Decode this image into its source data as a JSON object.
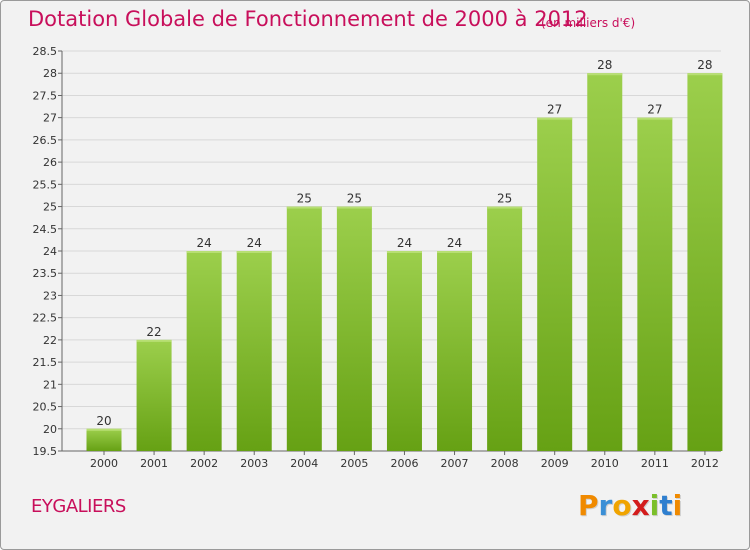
{
  "header": {
    "title": "Dotation Globale de Fonctionnement de 2000 à 2012",
    "unit": "(en milliers d'€)"
  },
  "commune": "EYGALIERS",
  "logo": {
    "letters": [
      "P",
      "r",
      "o",
      "x",
      "i",
      "t",
      "i"
    ],
    "colors": [
      "#f08a00",
      "#3a8fd6",
      "#f0a400",
      "#d31c1c",
      "#7bbf2a",
      "#2f7fcf",
      "#f08a00"
    ]
  },
  "colors": {
    "title": "#c80f5b",
    "bar_top": "#9ccf4c",
    "bar_bottom": "#66a114",
    "grid": "#d8d8d8"
  },
  "chart_data": {
    "type": "bar",
    "categories": [
      "2000",
      "2001",
      "2002",
      "2003",
      "2004",
      "2005",
      "2006",
      "2007",
      "2008",
      "2009",
      "2010",
      "2011",
      "2012"
    ],
    "values": [
      20,
      22,
      24,
      24,
      25,
      25,
      24,
      24,
      25,
      27,
      28,
      27,
      28
    ],
    "data_labels": [
      "20",
      "22",
      "24",
      "24",
      "25",
      "25",
      "24",
      "24",
      "25",
      "27",
      "28",
      "27",
      "28"
    ],
    "ylim": [
      19.5,
      28.5
    ],
    "yticks": [
      19.5,
      20,
      20.5,
      21,
      21.5,
      22,
      22.5,
      23,
      23.5,
      24,
      24.5,
      25,
      25.5,
      26,
      26.5,
      27,
      27.5,
      28,
      28.5
    ],
    "ytick_labels": [
      "19.5",
      "20",
      "20.5",
      "21",
      "21.5",
      "22",
      "22.5",
      "23",
      "23.5",
      "24",
      "24.5",
      "25",
      "25.5",
      "26",
      "26.5",
      "27",
      "27.5",
      "28",
      "28.5"
    ],
    "grid": true,
    "legend": "none"
  }
}
